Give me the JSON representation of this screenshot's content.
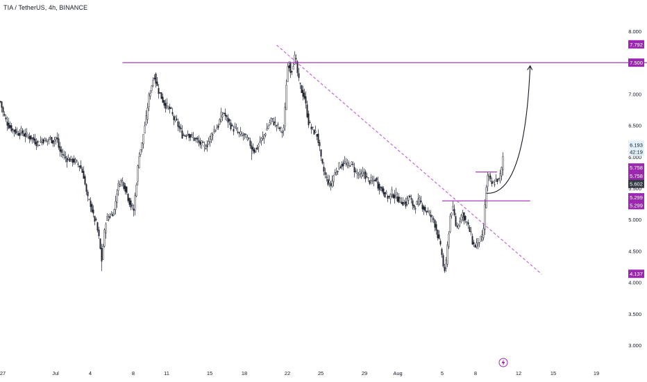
{
  "header": {
    "title": "TIA / TetherUS, 4h, BINANCE"
  },
  "colors": {
    "up": "#26a69a",
    "down": "#131722",
    "candle": "#1e222d",
    "level_line": "#9c27b0",
    "trendline": "#c158dc",
    "tag_purple": "#9c27b0",
    "tag_current": "#e3f2fd",
    "tag_dark": "#363a45",
    "arrow": "#131722",
    "axis_text": "#131722"
  },
  "chart_data": {
    "type": "candlestick",
    "title": "TIA / TetherUS, 4h, BINANCE",
    "y_scale": "linear",
    "ylim": [
      2.9,
      8.1
    ],
    "y_ticks": [
      "8.000",
      "7.000",
      "6.500",
      "6.000",
      "5.500",
      "5.000",
      "4.500",
      "4.000",
      "3.500",
      "3.000"
    ],
    "x_ticks": [
      "27",
      "Jul",
      "4",
      "8",
      "11",
      "15",
      "18",
      "22",
      "25",
      "29",
      "Aug",
      "5",
      "8",
      "12",
      "15",
      "19"
    ],
    "price_tags": [
      {
        "label": "7.792",
        "value": 7.792,
        "style": "purple"
      },
      {
        "label": "7.500",
        "value": 7.5,
        "style": "purple"
      },
      {
        "label": "6.193",
        "value": 6.193,
        "style": "current"
      },
      {
        "label": "42:19",
        "value": 6.08,
        "style": "countdown"
      },
      {
        "label": "5.758",
        "value": 5.83,
        "style": "purple"
      },
      {
        "label": "5.758",
        "value": 5.7,
        "style": "purple"
      },
      {
        "label": "5.602",
        "value": 5.57,
        "style": "dark"
      },
      {
        "label": "5.299",
        "value": 5.355,
        "style": "purple"
      },
      {
        "label": "5.299",
        "value": 5.23,
        "style": "purple"
      },
      {
        "label": "4.137",
        "value": 4.137,
        "style": "purple"
      }
    ],
    "horizontal_levels": [
      {
        "value": 7.5,
        "x_start": "Jul 8",
        "x_end": "axis"
      },
      {
        "value": 5.299,
        "x_start": "Aug 5",
        "x_end": "Aug 13"
      },
      {
        "value": 5.758,
        "x_start": "Aug 8",
        "x_end": "Aug 10"
      }
    ],
    "trendline": {
      "style": "dashed",
      "from": [
        "Jul 22",
        7.78
      ],
      "to": [
        "Aug 14",
        4.13
      ]
    },
    "projection_arrow": {
      "from": [
        "Aug 9",
        5.42
      ],
      "to": [
        "Aug 13",
        7.45
      ]
    },
    "price_path": [
      [
        0,
        6.88
      ],
      [
        4,
        6.7
      ],
      [
        8,
        6.58
      ],
      [
        12,
        6.5
      ],
      [
        16,
        6.45
      ],
      [
        20,
        6.42
      ],
      [
        25,
        6.38
      ],
      [
        30,
        6.4
      ],
      [
        35,
        6.35
      ],
      [
        40,
        6.33
      ],
      [
        45,
        6.3
      ],
      [
        50,
        6.25
      ],
      [
        55,
        6.2
      ],
      [
        60,
        6.28
      ],
      [
        66,
        6.25
      ],
      [
        71,
        6.3
      ],
      [
        76,
        6.25
      ],
      [
        81,
        6.32
      ],
      [
        85,
        6.1
      ],
      [
        89,
        6.05
      ],
      [
        94,
        5.98
      ],
      [
        99,
        5.96
      ],
      [
        104,
        5.95
      ],
      [
        110,
        5.9
      ],
      [
        115,
        5.85
      ],
      [
        120,
        5.7
      ],
      [
        125,
        5.35
      ],
      [
        130,
        5.25
      ],
      [
        134,
        5.05
      ],
      [
        138,
        4.95
      ],
      [
        142,
        4.7
      ],
      [
        146,
        4.35
      ],
      [
        149,
        4.7
      ],
      [
        152,
        4.98
      ],
      [
        156,
        5.05
      ],
      [
        160,
        5.08
      ],
      [
        164,
        5.15
      ],
      [
        168,
        5.45
      ],
      [
        172,
        5.62
      ],
      [
        176,
        5.6
      ],
      [
        180,
        5.5
      ],
      [
        184,
        5.35
      ],
      [
        188,
        5.22
      ],
      [
        192,
        5.15
      ],
      [
        196,
        5.6
      ],
      [
        200,
        6.05
      ],
      [
        204,
        6.2
      ],
      [
        207,
        6.45
      ],
      [
        210,
        6.6
      ],
      [
        213,
        6.9
      ],
      [
        216,
        7.05
      ],
      [
        219,
        7.2
      ],
      [
        222,
        7.3
      ],
      [
        225,
        7.15
      ],
      [
        228,
        7.05
      ],
      [
        232,
        6.95
      ],
      [
        236,
        6.85
      ],
      [
        240,
        6.8
      ],
      [
        245,
        6.75
      ],
      [
        250,
        6.6
      ],
      [
        254,
        6.55
      ],
      [
        258,
        6.45
      ],
      [
        262,
        6.35
      ],
      [
        266,
        6.35
      ],
      [
        270,
        6.38
      ],
      [
        274,
        6.33
      ],
      [
        278,
        6.3
      ],
      [
        282,
        6.28
      ],
      [
        286,
        6.22
      ],
      [
        290,
        6.2
      ],
      [
        294,
        6.15
      ],
      [
        298,
        6.2
      ],
      [
        302,
        6.3
      ],
      [
        306,
        6.4
      ],
      [
        310,
        6.45
      ],
      [
        314,
        6.5
      ],
      [
        318,
        6.65
      ],
      [
        322,
        6.7
      ],
      [
        326,
        6.6
      ],
      [
        330,
        6.55
      ],
      [
        334,
        6.45
      ],
      [
        338,
        6.45
      ],
      [
        342,
        6.38
      ],
      [
        346,
        6.35
      ],
      [
        350,
        6.35
      ],
      [
        354,
        6.3
      ],
      [
        358,
        6.25
      ],
      [
        362,
        6.15
      ],
      [
        366,
        6.1
      ],
      [
        370,
        6.15
      ],
      [
        374,
        6.25
      ],
      [
        378,
        6.3
      ],
      [
        382,
        6.4
      ],
      [
        386,
        6.5
      ],
      [
        390,
        6.6
      ],
      [
        394,
        6.55
      ],
      [
        398,
        6.5
      ],
      [
        402,
        6.45
      ],
      [
        406,
        6.4
      ],
      [
        409,
        6.5
      ],
      [
        411,
        7.0
      ],
      [
        413,
        7.35
      ],
      [
        415,
        7.55
      ],
      [
        417,
        7.4
      ],
      [
        419,
        7.35
      ],
      [
        421,
        7.45
      ],
      [
        423,
        7.55
      ],
      [
        425,
        7.6
      ],
      [
        427,
        7.4
      ],
      [
        430,
        7.2
      ],
      [
        434,
        7.05
      ],
      [
        438,
        6.95
      ],
      [
        441,
        6.75
      ],
      [
        444,
        6.55
      ],
      [
        448,
        6.45
      ],
      [
        452,
        6.4
      ],
      [
        456,
        6.35
      ],
      [
        459,
        6.2
      ],
      [
        462,
        5.95
      ],
      [
        465,
        5.8
      ],
      [
        468,
        5.7
      ],
      [
        472,
        5.6
      ],
      [
        476,
        5.55
      ],
      [
        480,
        5.7
      ],
      [
        484,
        5.78
      ],
      [
        488,
        5.85
      ],
      [
        492,
        5.88
      ],
      [
        496,
        5.9
      ],
      [
        500,
        5.85
      ],
      [
        504,
        5.9
      ],
      [
        508,
        5.85
      ],
      [
        512,
        5.75
      ],
      [
        516,
        5.72
      ],
      [
        520,
        5.7
      ],
      [
        524,
        5.75
      ],
      [
        528,
        5.65
      ],
      [
        532,
        5.62
      ],
      [
        536,
        5.6
      ],
      [
        540,
        5.65
      ],
      [
        544,
        5.55
      ],
      [
        548,
        5.5
      ],
      [
        552,
        5.45
      ],
      [
        556,
        5.38
      ],
      [
        560,
        5.35
      ],
      [
        564,
        5.42
      ],
      [
        568,
        5.38
      ],
      [
        572,
        5.35
      ],
      [
        576,
        5.3
      ],
      [
        580,
        5.28
      ],
      [
        584,
        5.25
      ],
      [
        588,
        5.38
      ],
      [
        592,
        5.28
      ],
      [
        596,
        5.2
      ],
      [
        600,
        5.25
      ],
      [
        604,
        5.3
      ],
      [
        608,
        5.22
      ],
      [
        612,
        5.15
      ],
      [
        616,
        5.12
      ],
      [
        620,
        5.05
      ],
      [
        624,
        5.0
      ],
      [
        628,
        4.85
      ],
      [
        632,
        4.65
      ],
      [
        636,
        4.45
      ],
      [
        639,
        4.15
      ],
      [
        642,
        4.3
      ],
      [
        645,
        4.7
      ],
      [
        648,
        5.05
      ],
      [
        651,
        5.2
      ],
      [
        654,
        5.05
      ],
      [
        657,
        4.85
      ],
      [
        660,
        4.95
      ],
      [
        663,
        5.05
      ],
      [
        666,
        5.1
      ],
      [
        669,
        5.0
      ],
      [
        672,
        4.95
      ],
      [
        675,
        4.85
      ],
      [
        678,
        4.75
      ],
      [
        681,
        4.6
      ],
      [
        684,
        4.58
      ],
      [
        688,
        4.65
      ],
      [
        692,
        4.68
      ],
      [
        695,
        4.72
      ],
      [
        697,
        5.0
      ],
      [
        699,
        5.4
      ],
      [
        701,
        5.65
      ],
      [
        703,
        5.72
      ],
      [
        706,
        5.6
      ],
      [
        709,
        5.55
      ],
      [
        712,
        5.6
      ],
      [
        715,
        5.65
      ],
      [
        718,
        5.62
      ],
      [
        721,
        5.75
      ],
      [
        723,
        5.85
      ],
      [
        725,
        6.15
      ]
    ]
  }
}
